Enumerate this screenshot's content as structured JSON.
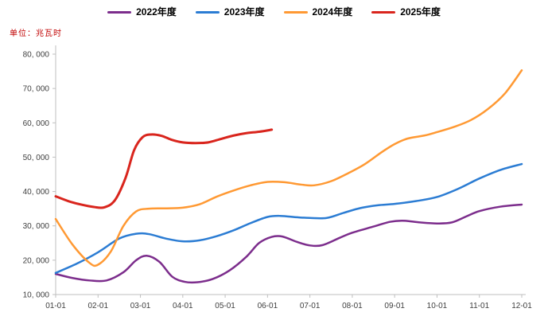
{
  "unit_label": "单位：兆瓦时",
  "chart_data": {
    "type": "line",
    "title": "",
    "grid": false,
    "legend_position": "top",
    "x_axis": {
      "tick_labels": [
        "01-01",
        "02-01",
        "03-01",
        "04-01",
        "05-01",
        "06-01",
        "07-01",
        "08-01",
        "09-01",
        "10-01",
        "11-01",
        "12-01"
      ]
    },
    "y_axis": {
      "min": 10000,
      "max": 80000,
      "tick_values": [
        10000,
        20000,
        30000,
        40000,
        50000,
        60000,
        70000,
        80000
      ],
      "tick_labels": [
        "10, 000",
        "20, 000",
        "30, 000",
        "40, 000",
        "50, 000",
        "60, 000",
        "70, 000",
        "80, 000"
      ]
    },
    "colors": {
      "axis": "#BFBFBF",
      "tick_text": "#404040",
      "unit_text": "#C00000"
    },
    "series": [
      {
        "key": "2022",
        "name": "2022年度",
        "color": "#7C2D8C",
        "width": 2.5,
        "points": [
          [
            0,
            16000
          ],
          [
            0.4,
            14800
          ],
          [
            0.8,
            14100
          ],
          [
            1.2,
            14100
          ],
          [
            1.6,
            16500
          ],
          [
            1.9,
            20000
          ],
          [
            2.15,
            21300
          ],
          [
            2.45,
            19500
          ],
          [
            2.75,
            15200
          ],
          [
            3.05,
            13700
          ],
          [
            3.35,
            13600
          ],
          [
            3.7,
            14500
          ],
          [
            4.1,
            17000
          ],
          [
            4.5,
            21000
          ],
          [
            4.8,
            25000
          ],
          [
            5.1,
            26800
          ],
          [
            5.35,
            26900
          ],
          [
            5.7,
            25300
          ],
          [
            6.0,
            24300
          ],
          [
            6.3,
            24400
          ],
          [
            6.7,
            26500
          ],
          [
            7.0,
            28000
          ],
          [
            7.5,
            29800
          ],
          [
            7.9,
            31200
          ],
          [
            8.2,
            31500
          ],
          [
            8.6,
            31000
          ],
          [
            9.0,
            30700
          ],
          [
            9.35,
            31000
          ],
          [
            9.7,
            32800
          ],
          [
            10.0,
            34300
          ],
          [
            10.5,
            35600
          ],
          [
            11.0,
            36200
          ]
        ]
      },
      {
        "key": "2023",
        "name": "2023年度",
        "color": "#2B7CD3",
        "width": 2.5,
        "points": [
          [
            0,
            16300
          ],
          [
            0.5,
            19000
          ],
          [
            1.0,
            22300
          ],
          [
            1.5,
            26300
          ],
          [
            1.9,
            27700
          ],
          [
            2.2,
            27600
          ],
          [
            2.6,
            26300
          ],
          [
            3.0,
            25500
          ],
          [
            3.4,
            25800
          ],
          [
            3.8,
            27000
          ],
          [
            4.2,
            28700
          ],
          [
            4.6,
            30800
          ],
          [
            5.0,
            32600
          ],
          [
            5.3,
            32900
          ],
          [
            5.7,
            32500
          ],
          [
            6.0,
            32300
          ],
          [
            6.4,
            32300
          ],
          [
            6.8,
            33800
          ],
          [
            7.2,
            35200
          ],
          [
            7.6,
            36000
          ],
          [
            8.0,
            36400
          ],
          [
            8.5,
            37200
          ],
          [
            9.0,
            38400
          ],
          [
            9.5,
            40800
          ],
          [
            10.0,
            43800
          ],
          [
            10.5,
            46300
          ],
          [
            11.0,
            48000
          ]
        ]
      },
      {
        "key": "2024",
        "name": "2024年度",
        "color": "#FF9933",
        "width": 2.5,
        "points": [
          [
            0,
            32000
          ],
          [
            0.4,
            24500
          ],
          [
            0.8,
            19200
          ],
          [
            1.0,
            18700
          ],
          [
            1.3,
            22500
          ],
          [
            1.6,
            30000
          ],
          [
            1.9,
            34200
          ],
          [
            2.2,
            35000
          ],
          [
            2.6,
            35100
          ],
          [
            3.0,
            35300
          ],
          [
            3.4,
            36300
          ],
          [
            3.8,
            38500
          ],
          [
            4.2,
            40300
          ],
          [
            4.6,
            41800
          ],
          [
            5.0,
            42800
          ],
          [
            5.4,
            42700
          ],
          [
            5.8,
            42000
          ],
          [
            6.1,
            41800
          ],
          [
            6.5,
            43000
          ],
          [
            6.9,
            45300
          ],
          [
            7.3,
            48000
          ],
          [
            7.7,
            51500
          ],
          [
            8.0,
            53800
          ],
          [
            8.3,
            55400
          ],
          [
            8.7,
            56300
          ],
          [
            9.0,
            57300
          ],
          [
            9.4,
            58800
          ],
          [
            9.8,
            60800
          ],
          [
            10.2,
            64000
          ],
          [
            10.6,
            68500
          ],
          [
            11.0,
            75300
          ]
        ]
      },
      {
        "key": "2025",
        "name": "2025年度",
        "color": "#D9251D",
        "width": 3,
        "points": [
          [
            0,
            38600
          ],
          [
            0.3,
            37200
          ],
          [
            0.6,
            36200
          ],
          [
            0.9,
            35500
          ],
          [
            1.15,
            35400
          ],
          [
            1.4,
            37500
          ],
          [
            1.65,
            44000
          ],
          [
            1.85,
            52000
          ],
          [
            2.05,
            55800
          ],
          [
            2.25,
            56600
          ],
          [
            2.5,
            56200
          ],
          [
            2.75,
            55000
          ],
          [
            3.0,
            54300
          ],
          [
            3.3,
            54100
          ],
          [
            3.6,
            54300
          ],
          [
            3.9,
            55300
          ],
          [
            4.2,
            56300
          ],
          [
            4.5,
            57000
          ],
          [
            4.8,
            57400
          ],
          [
            5.1,
            58000
          ]
        ]
      }
    ]
  }
}
